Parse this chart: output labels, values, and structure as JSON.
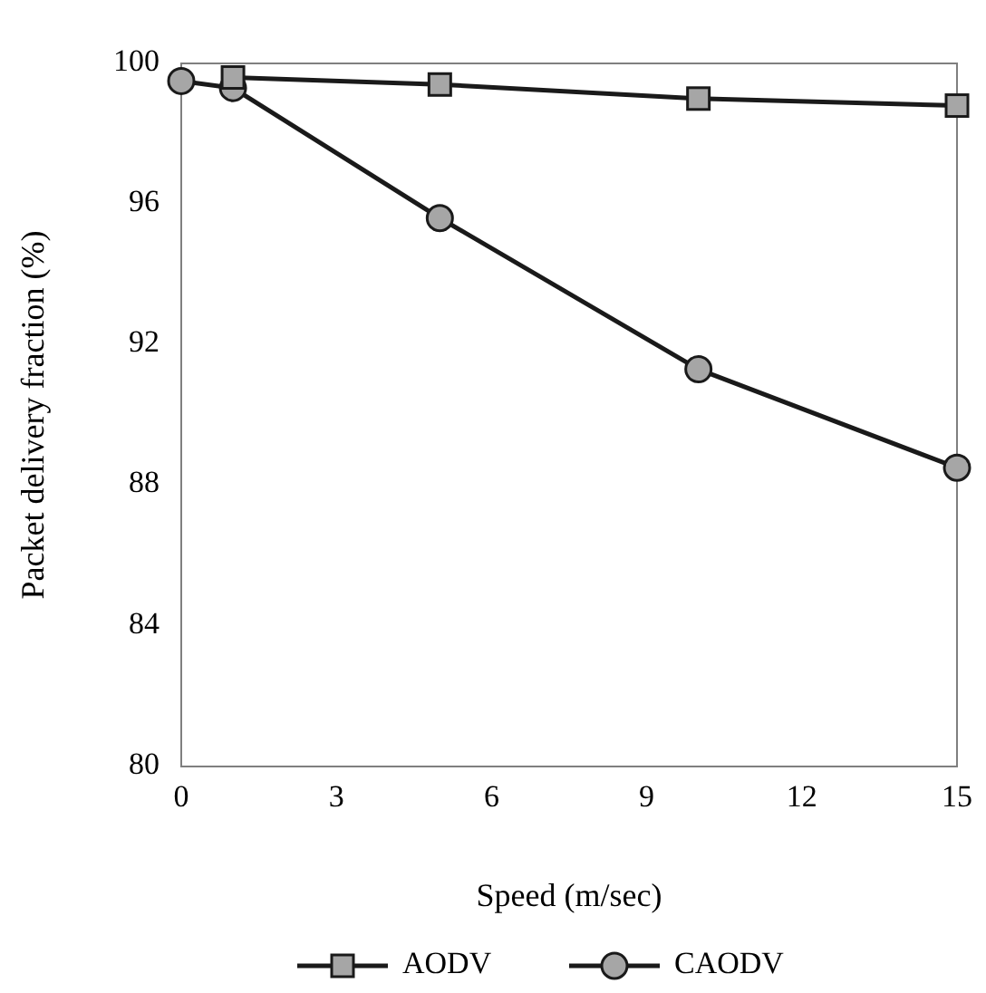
{
  "chart_data": {
    "type": "line",
    "xlabel": "Speed (m/sec)",
    "ylabel": "Packet delivery fraction (%)",
    "xlim": [
      0,
      15
    ],
    "xticks": [
      0,
      3,
      6,
      9,
      12,
      15
    ],
    "ylim": [
      80,
      100
    ],
    "yticks": [
      80,
      84,
      88,
      92,
      96,
      100
    ],
    "grid": false,
    "legend": "bottom",
    "line_style": "solid",
    "series": [
      {
        "name": "AODV",
        "color": "#1a1a1a",
        "marker": "square",
        "x": [
          1,
          5,
          10,
          15
        ],
        "values": [
          99.6,
          99.4,
          99.0,
          98.8
        ]
      },
      {
        "name": "CAODV",
        "color": "#1a1a1a",
        "marker": "circle",
        "x": [
          0,
          1,
          5,
          10,
          15
        ],
        "values": [
          99.5,
          99.3,
          95.6,
          91.3,
          88.5
        ]
      }
    ]
  }
}
